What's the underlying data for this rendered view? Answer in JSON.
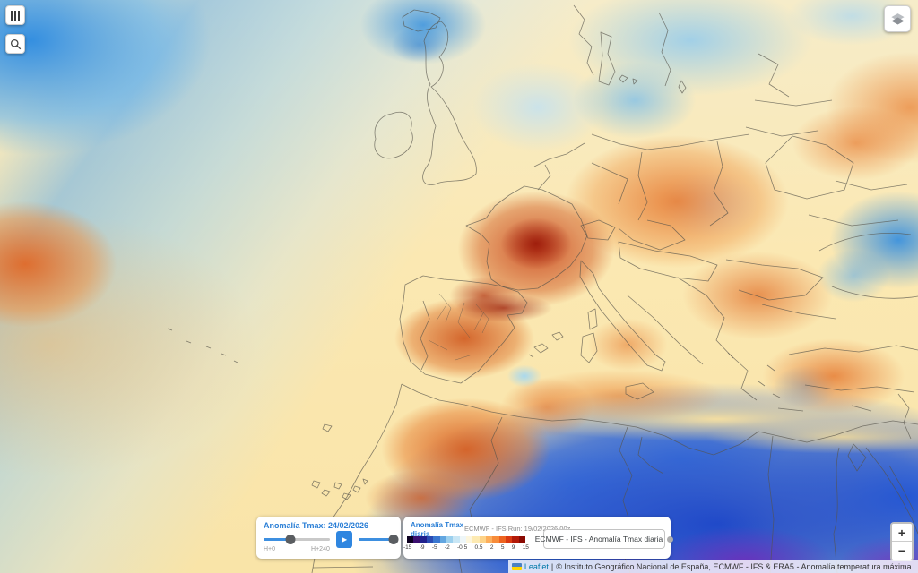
{
  "theme": {
    "accent_blue": "#2f86e0",
    "panel_title_blue": "#2b7fd6",
    "attribution_link_blue": "#0078a8"
  },
  "icons": {
    "menu": "vertical-bars",
    "search": "magnifier",
    "layers": "stacked-layers",
    "play": "▶",
    "dropdown_marker": "circle-dot",
    "leaflet_flag": "blue-yellow-flag"
  },
  "timeline": {
    "title": "Anomalía Tmax: 24/02/2026",
    "start_label": "H+0",
    "end_label": "H+240",
    "slider1_percent": 40,
    "slider2_percent": 100
  },
  "legend": {
    "variable_line1": "Anomalía Tmax",
    "variable_line2": "diaria",
    "run_label": "ECMWF - IFS Run: 19/02/2026 00z",
    "ticks": [
      "-15",
      "-9",
      "-5",
      "-2",
      "-0.5",
      "0.5",
      "2",
      "5",
      "9",
      "15"
    ],
    "colors": [
      "#0d0021",
      "#3b0f70",
      "#20208c",
      "#2a4bb3",
      "#3a77d0",
      "#62a6e0",
      "#9cd0ee",
      "#c8e6f5",
      "#eef6f8",
      "#fdf6dd",
      "#fdeab2",
      "#fdd388",
      "#fcae5c",
      "#f78c3a",
      "#ee6420",
      "#d93a12",
      "#b31a08",
      "#8a0a03"
    ]
  },
  "layer_selector": {
    "selected": "ECMWF - IFS - Anomalía Tmax diaria"
  },
  "zoom_control": {
    "zoom_in_label": "+",
    "zoom_out_label": "−"
  },
  "attribution": {
    "leaflet_label": "Leaflet",
    "separator": "|",
    "credit": "© Instituto Geográfico Nacional de España, ECMWF - IFS & ERA5 - Anomalía temperatura máxima."
  }
}
